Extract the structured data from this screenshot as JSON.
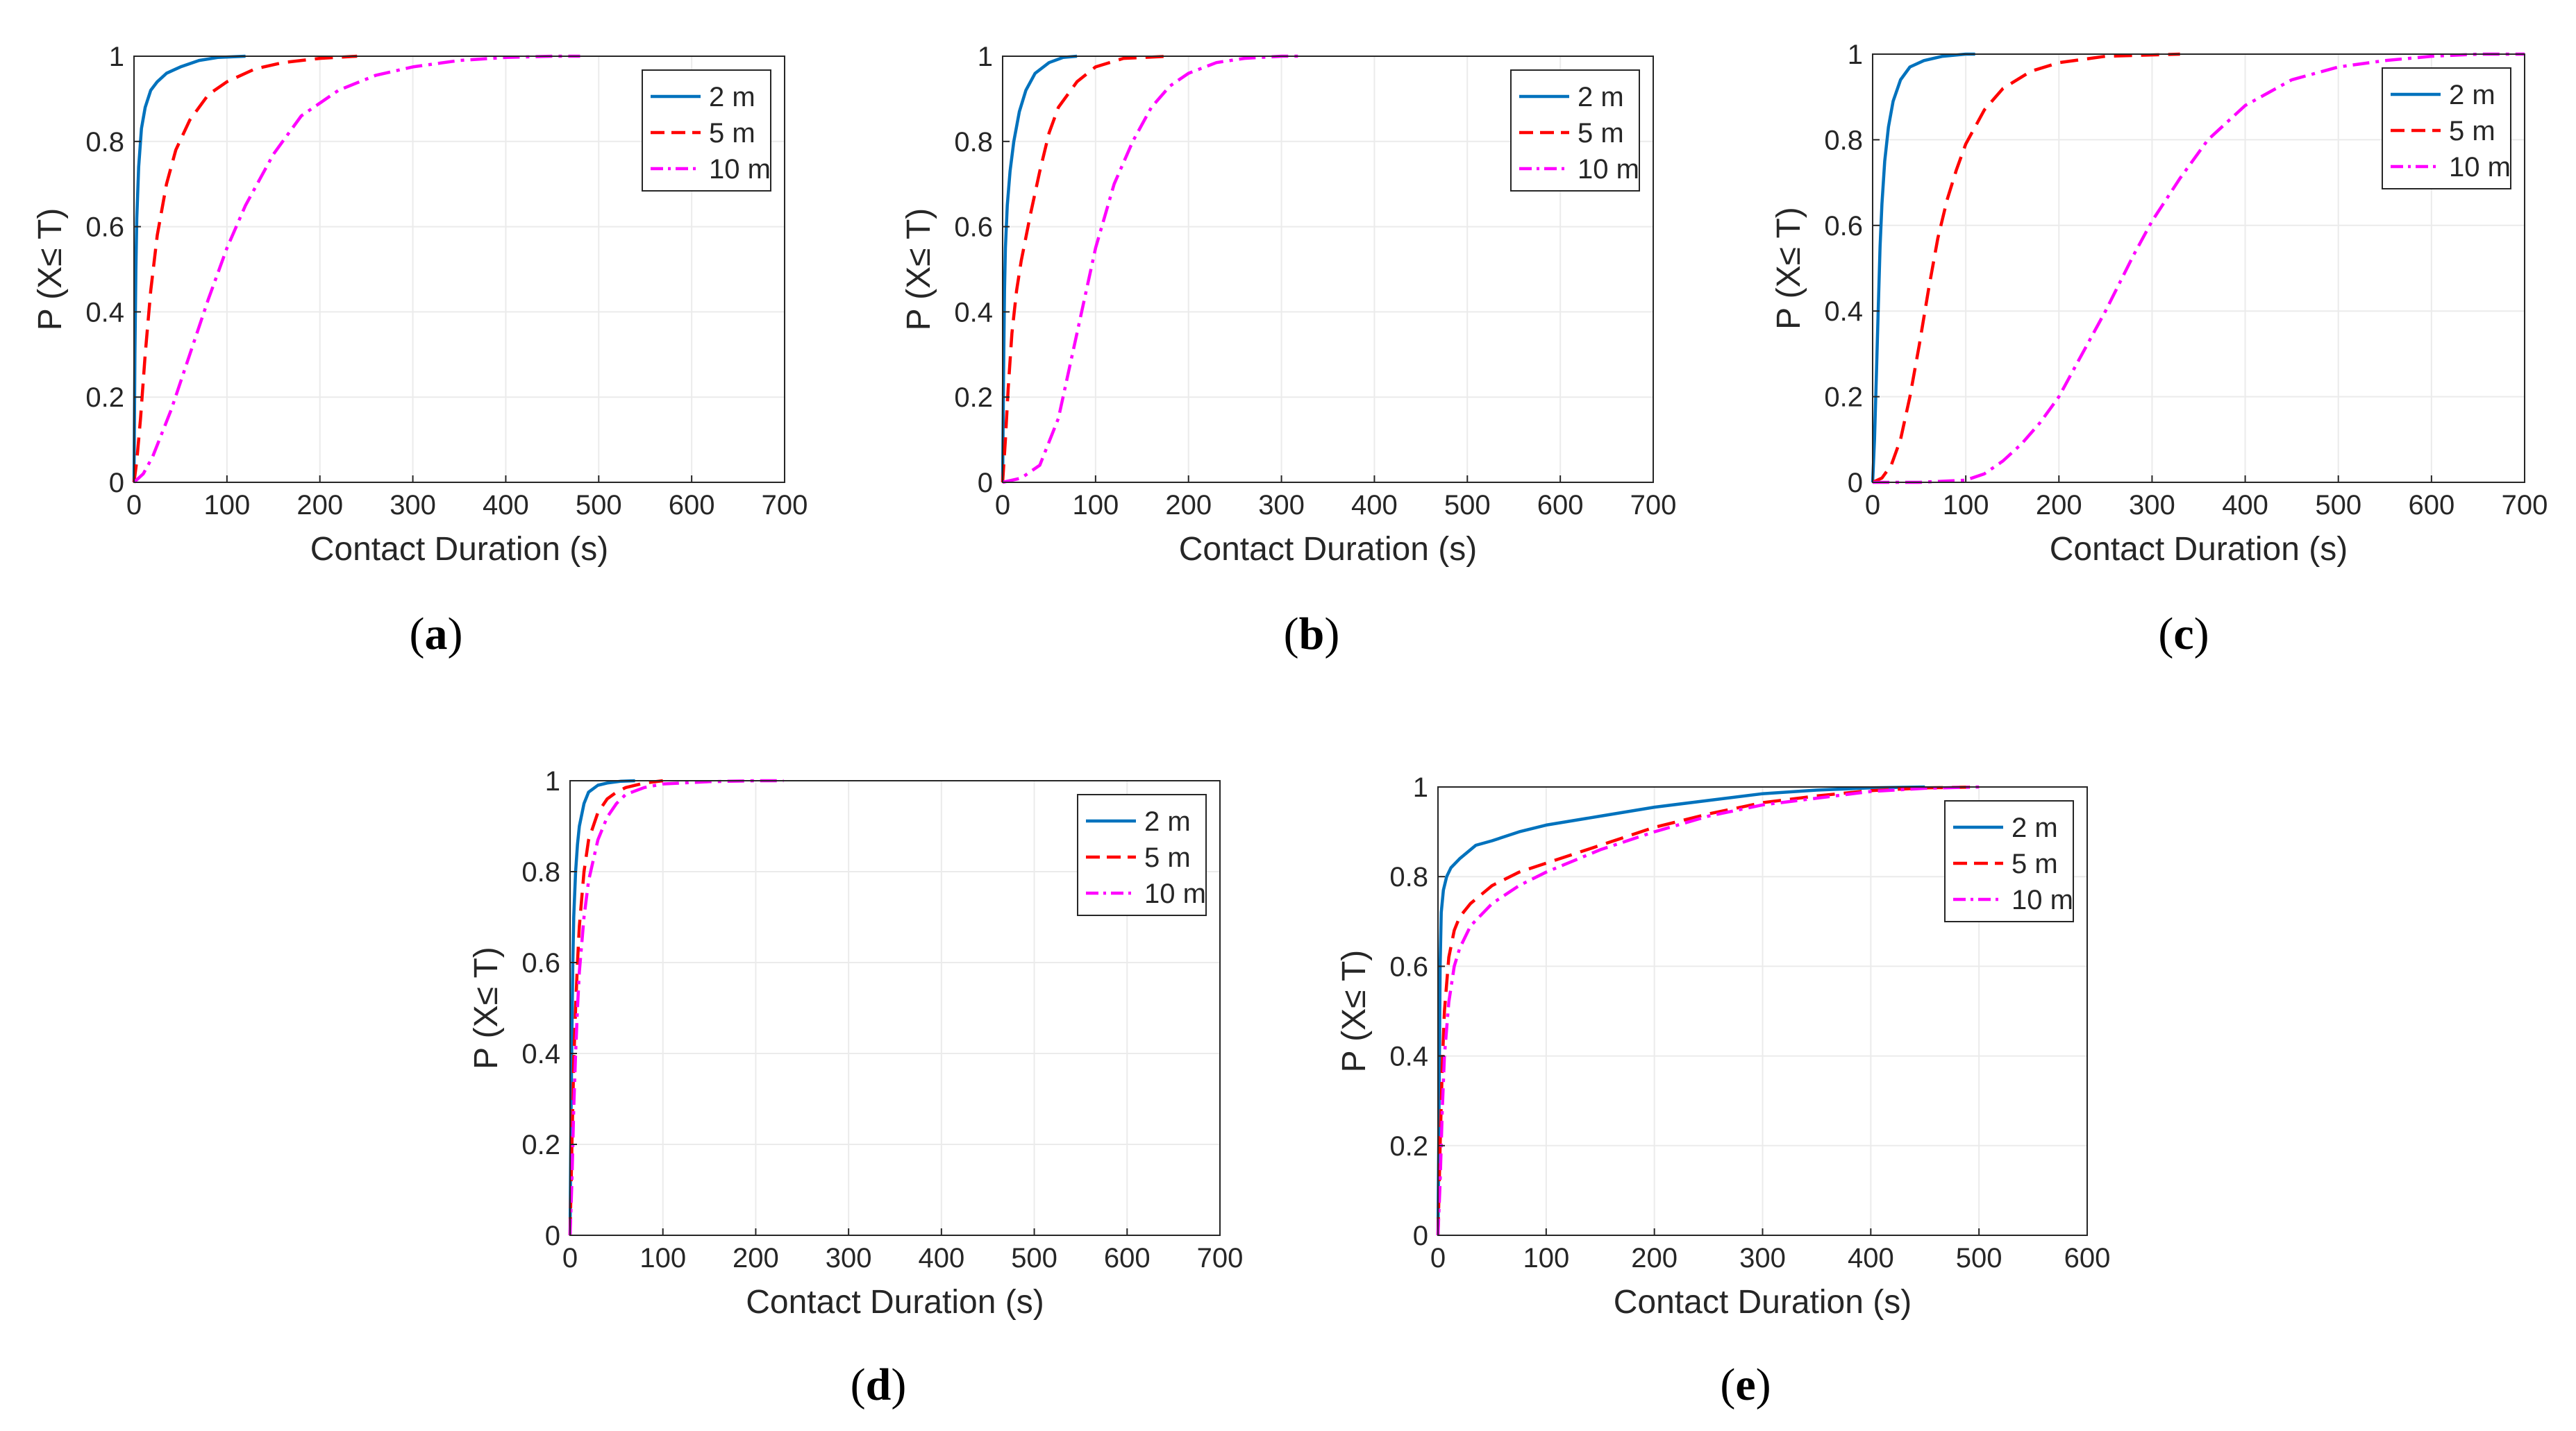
{
  "chart_data": [
    {
      "id": "a",
      "type": "line",
      "caption_letter": "a",
      "xlabel": "Contact Duration (s)",
      "ylabel": "P (X≤ T)",
      "xlim": [
        0,
        700
      ],
      "ylim": [
        0,
        1
      ],
      "xticks": [
        "0",
        "100",
        "200",
        "300",
        "400",
        "500",
        "600",
        "700"
      ],
      "yticks": [
        "0",
        "0.2",
        "0.4",
        "0.6",
        "0.8",
        "1"
      ],
      "grid": true,
      "legend_position": "top-right",
      "series": [
        {
          "name": "2 m",
          "style": "solid",
          "color": "#0072BD",
          "x": [
            0,
            1,
            2,
            3,
            5,
            8,
            12,
            18,
            25,
            35,
            50,
            70,
            90,
            120
          ],
          "y": [
            0,
            0.3,
            0.5,
            0.62,
            0.74,
            0.83,
            0.88,
            0.92,
            0.94,
            0.96,
            0.975,
            0.99,
            0.997,
            1
          ]
        },
        {
          "name": "5 m",
          "style": "dashed",
          "color": "#FF0000",
          "x": [
            0,
            3,
            7,
            12,
            18,
            25,
            35,
            45,
            60,
            80,
            100,
            130,
            160,
            200,
            240
          ],
          "y": [
            0,
            0.05,
            0.15,
            0.3,
            0.45,
            0.58,
            0.7,
            0.78,
            0.85,
            0.91,
            0.94,
            0.97,
            0.985,
            0.995,
            1
          ]
        },
        {
          "name": "10 m",
          "style": "dashdot",
          "color": "#FF00FF",
          "x": [
            0,
            10,
            20,
            40,
            60,
            80,
            100,
            120,
            150,
            180,
            220,
            260,
            300,
            350,
            400,
            450,
            480
          ],
          "y": [
            0,
            0.02,
            0.06,
            0.17,
            0.3,
            0.43,
            0.55,
            0.65,
            0.77,
            0.86,
            0.92,
            0.955,
            0.975,
            0.99,
            0.997,
            1,
            1
          ]
        }
      ],
      "annotations": []
    },
    {
      "id": "b",
      "type": "line",
      "caption_letter": "b",
      "xlabel": "Contact Duration (s)",
      "ylabel": "P (X≤ T)",
      "xlim": [
        0,
        700
      ],
      "ylim": [
        0,
        1
      ],
      "xticks": [
        "0",
        "100",
        "200",
        "300",
        "400",
        "500",
        "600",
        "700"
      ],
      "yticks": [
        "0",
        "0.2",
        "0.4",
        "0.6",
        "0.8",
        "1"
      ],
      "grid": true,
      "legend_position": "top-right",
      "series": [
        {
          "name": "2 m",
          "style": "solid",
          "color": "#0072BD",
          "x": [
            0,
            1,
            2,
            3,
            5,
            8,
            12,
            18,
            25,
            35,
            50,
            65,
            80
          ],
          "y": [
            0,
            0.25,
            0.45,
            0.55,
            0.65,
            0.73,
            0.8,
            0.87,
            0.92,
            0.96,
            0.985,
            0.997,
            1
          ]
        },
        {
          "name": "5 m",
          "style": "dashed",
          "color": "#FF0000",
          "x": [
            0,
            3,
            6,
            10,
            15,
            20,
            30,
            40,
            50,
            60,
            80,
            100,
            130,
            180
          ],
          "y": [
            0,
            0.1,
            0.22,
            0.35,
            0.45,
            0.52,
            0.63,
            0.73,
            0.82,
            0.88,
            0.94,
            0.975,
            0.995,
            1
          ]
        },
        {
          "name": "10 m",
          "style": "dashdot",
          "color": "#FF00FF",
          "x": [
            0,
            20,
            40,
            60,
            80,
            100,
            120,
            140,
            160,
            180,
            200,
            230,
            260,
            300,
            320
          ],
          "y": [
            0,
            0.01,
            0.04,
            0.15,
            0.35,
            0.55,
            0.7,
            0.8,
            0.88,
            0.93,
            0.96,
            0.985,
            0.995,
            1,
            1
          ]
        }
      ],
      "annotations": []
    },
    {
      "id": "c",
      "type": "line",
      "caption_letter": "c",
      "xlabel": "Contact Duration (s)",
      "ylabel": "P (X≤ T)",
      "xlim": [
        0,
        700
      ],
      "ylim": [
        0,
        1
      ],
      "xticks": [
        "0",
        "100",
        "200",
        "300",
        "400",
        "500",
        "600",
        "700"
      ],
      "yticks": [
        "0",
        "0.2",
        "0.4",
        "0.6",
        "0.8",
        "1"
      ],
      "grid": true,
      "legend_position": "top-right",
      "series": [
        {
          "name": "2 m",
          "style": "solid",
          "color": "#0072BD",
          "x": [
            0,
            2,
            4,
            6,
            8,
            10,
            13,
            17,
            22,
            30,
            40,
            55,
            75,
            100,
            110
          ],
          "y": [
            0,
            0.1,
            0.25,
            0.4,
            0.55,
            0.65,
            0.75,
            0.83,
            0.89,
            0.94,
            0.97,
            0.985,
            0.995,
            1,
            1
          ]
        },
        {
          "name": "5 m",
          "style": "dashed",
          "color": "#FF0000",
          "x": [
            0,
            10,
            20,
            30,
            40,
            50,
            60,
            70,
            80,
            90,
            100,
            120,
            140,
            170,
            200,
            250,
            330
          ],
          "y": [
            0,
            0.01,
            0.04,
            0.1,
            0.2,
            0.32,
            0.45,
            0.57,
            0.66,
            0.73,
            0.79,
            0.87,
            0.92,
            0.96,
            0.98,
            0.995,
            1
          ]
        },
        {
          "name": "10 m",
          "style": "dashdot",
          "color": "#FF00FF",
          "x": [
            0,
            50,
            100,
            120,
            140,
            160,
            180,
            200,
            220,
            250,
            280,
            300,
            330,
            360,
            400,
            450,
            500,
            550,
            600,
            650,
            700
          ],
          "y": [
            0,
            0,
            0.005,
            0.02,
            0.05,
            0.09,
            0.14,
            0.2,
            0.28,
            0.4,
            0.53,
            0.61,
            0.71,
            0.8,
            0.88,
            0.94,
            0.97,
            0.985,
            0.995,
            1,
            1
          ]
        }
      ],
      "annotations": []
    },
    {
      "id": "d",
      "type": "line",
      "caption_letter": "d",
      "xlabel": "Contact Duration (s)",
      "ylabel": "P (X≤ T)",
      "xlim": [
        0,
        700
      ],
      "ylim": [
        0,
        1
      ],
      "xticks": [
        "0",
        "100",
        "200",
        "300",
        "400",
        "500",
        "600",
        "700"
      ],
      "yticks": [
        "0",
        "0.2",
        "0.4",
        "0.6",
        "0.8",
        "1"
      ],
      "grid": true,
      "legend_position": "top-right",
      "series": [
        {
          "name": "2 m",
          "style": "solid",
          "color": "#0072BD",
          "x": [
            0,
            1,
            2,
            3,
            4,
            6,
            8,
            10,
            15,
            20,
            30,
            40,
            55,
            70
          ],
          "y": [
            0,
            0.25,
            0.45,
            0.6,
            0.7,
            0.8,
            0.86,
            0.9,
            0.95,
            0.975,
            0.99,
            0.995,
            0.999,
            1
          ]
        },
        {
          "name": "5 m",
          "style": "dashed",
          "color": "#FF0000",
          "x": [
            0,
            2,
            4,
            6,
            8,
            10,
            15,
            20,
            30,
            40,
            50,
            60,
            80,
            100
          ],
          "y": [
            0,
            0.2,
            0.38,
            0.5,
            0.6,
            0.68,
            0.8,
            0.87,
            0.93,
            0.96,
            0.975,
            0.985,
            0.995,
            1
          ]
        },
        {
          "name": "10 m",
          "style": "dashdot",
          "color": "#FF00FF",
          "x": [
            0,
            2,
            4,
            6,
            8,
            10,
            15,
            20,
            30,
            40,
            50,
            60,
            80,
            100,
            150,
            200,
            230
          ],
          "y": [
            0,
            0.12,
            0.28,
            0.4,
            0.5,
            0.58,
            0.7,
            0.78,
            0.87,
            0.92,
            0.95,
            0.97,
            0.985,
            0.993,
            0.998,
            1,
            1
          ]
        }
      ],
      "annotations": []
    },
    {
      "id": "e",
      "type": "line",
      "caption_letter": "e",
      "xlabel": "Contact Duration (s)",
      "ylabel": "P (X≤ T)",
      "xlim": [
        0,
        600
      ],
      "ylim": [
        0,
        1
      ],
      "xticks": [
        "0",
        "100",
        "200",
        "300",
        "400",
        "500",
        "600"
      ],
      "yticks": [
        "0",
        "0.2",
        "0.4",
        "0.6",
        "0.8",
        "1"
      ],
      "grid": true,
      "legend_position": "top-right",
      "series": [
        {
          "name": "2 m",
          "style": "solid",
          "color": "#0072BD",
          "x": [
            0,
            1,
            2,
            3,
            5,
            8,
            12,
            20,
            35,
            50,
            75,
            100,
            150,
            200,
            250,
            300,
            350,
            400,
            450
          ],
          "y": [
            0,
            0.3,
            0.6,
            0.72,
            0.77,
            0.8,
            0.82,
            0.84,
            0.87,
            0.88,
            0.9,
            0.915,
            0.935,
            0.955,
            0.97,
            0.985,
            0.993,
            0.998,
            1
          ]
        },
        {
          "name": "5 m",
          "style": "dashed",
          "color": "#FF0000",
          "x": [
            0,
            2,
            4,
            6,
            10,
            15,
            20,
            30,
            50,
            75,
            100,
            150,
            200,
            250,
            300,
            350,
            400,
            450,
            500
          ],
          "y": [
            0,
            0.2,
            0.38,
            0.5,
            0.62,
            0.68,
            0.71,
            0.74,
            0.78,
            0.81,
            0.83,
            0.87,
            0.91,
            0.94,
            0.965,
            0.98,
            0.992,
            0.998,
            1
          ]
        },
        {
          "name": "10 m",
          "style": "dashdot",
          "color": "#FF00FF",
          "x": [
            0,
            2,
            4,
            6,
            10,
            15,
            20,
            30,
            50,
            75,
            100,
            150,
            200,
            250,
            300,
            350,
            400,
            450,
            500
          ],
          "y": [
            0,
            0.12,
            0.28,
            0.4,
            0.52,
            0.6,
            0.64,
            0.69,
            0.74,
            0.78,
            0.81,
            0.86,
            0.9,
            0.935,
            0.96,
            0.975,
            0.99,
            0.997,
            1
          ]
        }
      ],
      "annotations": []
    }
  ]
}
